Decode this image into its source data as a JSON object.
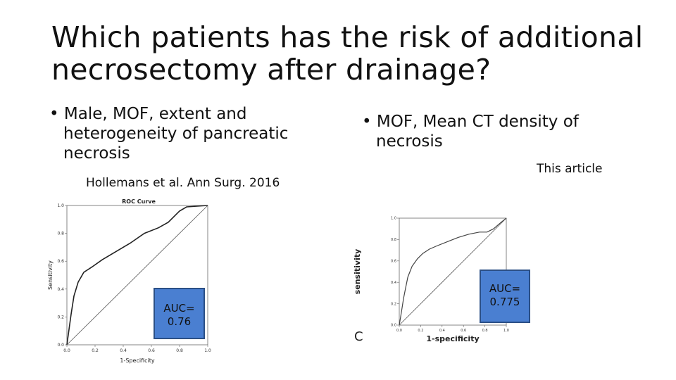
{
  "slide": {
    "title": "Which patients has the risk of additional necrosectomy after drainage?",
    "left_bullet": "• Male, MOF, extent and heterogeneity of pancreatic necrosis",
    "right_bullet": "• MOF, Mean CT density of necrosis",
    "left_citation": "Hollemans et al. Ann Surg. 2016",
    "right_citation": "This article",
    "left_auc_label": "AUC=",
    "left_auc_value": "0.76",
    "right_auc_label": "AUC=",
    "right_auc_value": "0.775",
    "right_panel_letter": "C"
  },
  "chart_data": [
    {
      "type": "line",
      "title": "ROC Curve",
      "xlabel": "1-Specificity",
      "ylabel": "Sensitivity",
      "xlim": [
        0,
        1
      ],
      "ylim": [
        0,
        1
      ],
      "x_ticks": [
        "0.0",
        "0.2",
        "0.4",
        "0.6",
        "0.8",
        "1.0"
      ],
      "y_ticks": [
        "0.0",
        "0.2",
        "0.4",
        "0.6",
        "0.8",
        "1.0"
      ],
      "grid": false,
      "series": [
        {
          "role": "curve",
          "x": [
            0.0,
            0.03,
            0.05,
            0.08,
            0.12,
            0.18,
            0.25,
            0.35,
            0.45,
            0.55,
            0.65,
            0.72,
            0.8,
            0.85,
            1.0
          ],
          "y": [
            0.0,
            0.22,
            0.35,
            0.45,
            0.52,
            0.56,
            0.61,
            0.67,
            0.73,
            0.8,
            0.84,
            0.88,
            0.96,
            0.99,
            1.0
          ]
        },
        {
          "role": "reference",
          "x": [
            0,
            1
          ],
          "y": [
            0,
            1
          ]
        }
      ],
      "auc": 0.76
    },
    {
      "type": "line",
      "title": "",
      "xlabel": "1-specificity",
      "ylabel": "sensitivity",
      "xlim": [
        0,
        1
      ],
      "ylim": [
        0,
        1
      ],
      "x_ticks": [
        "0.0",
        "0.2",
        "0.4",
        "0.6",
        "0.8",
        "1.0"
      ],
      "y_ticks": [
        "0.0",
        "0.2",
        "0.4",
        "0.6",
        "0.8",
        "1.0"
      ],
      "grid": false,
      "series": [
        {
          "role": "curve",
          "x": [
            0.0,
            0.02,
            0.04,
            0.06,
            0.08,
            0.12,
            0.17,
            0.22,
            0.28,
            0.35,
            0.45,
            0.55,
            0.65,
            0.75,
            0.82,
            0.88,
            0.95,
            1.0
          ],
          "y": [
            0.0,
            0.12,
            0.25,
            0.35,
            0.45,
            0.55,
            0.62,
            0.67,
            0.71,
            0.74,
            0.78,
            0.82,
            0.85,
            0.87,
            0.87,
            0.9,
            0.96,
            1.0
          ]
        },
        {
          "role": "reference",
          "x": [
            0,
            1
          ],
          "y": [
            0,
            1
          ]
        }
      ],
      "auc": 0.775
    }
  ]
}
